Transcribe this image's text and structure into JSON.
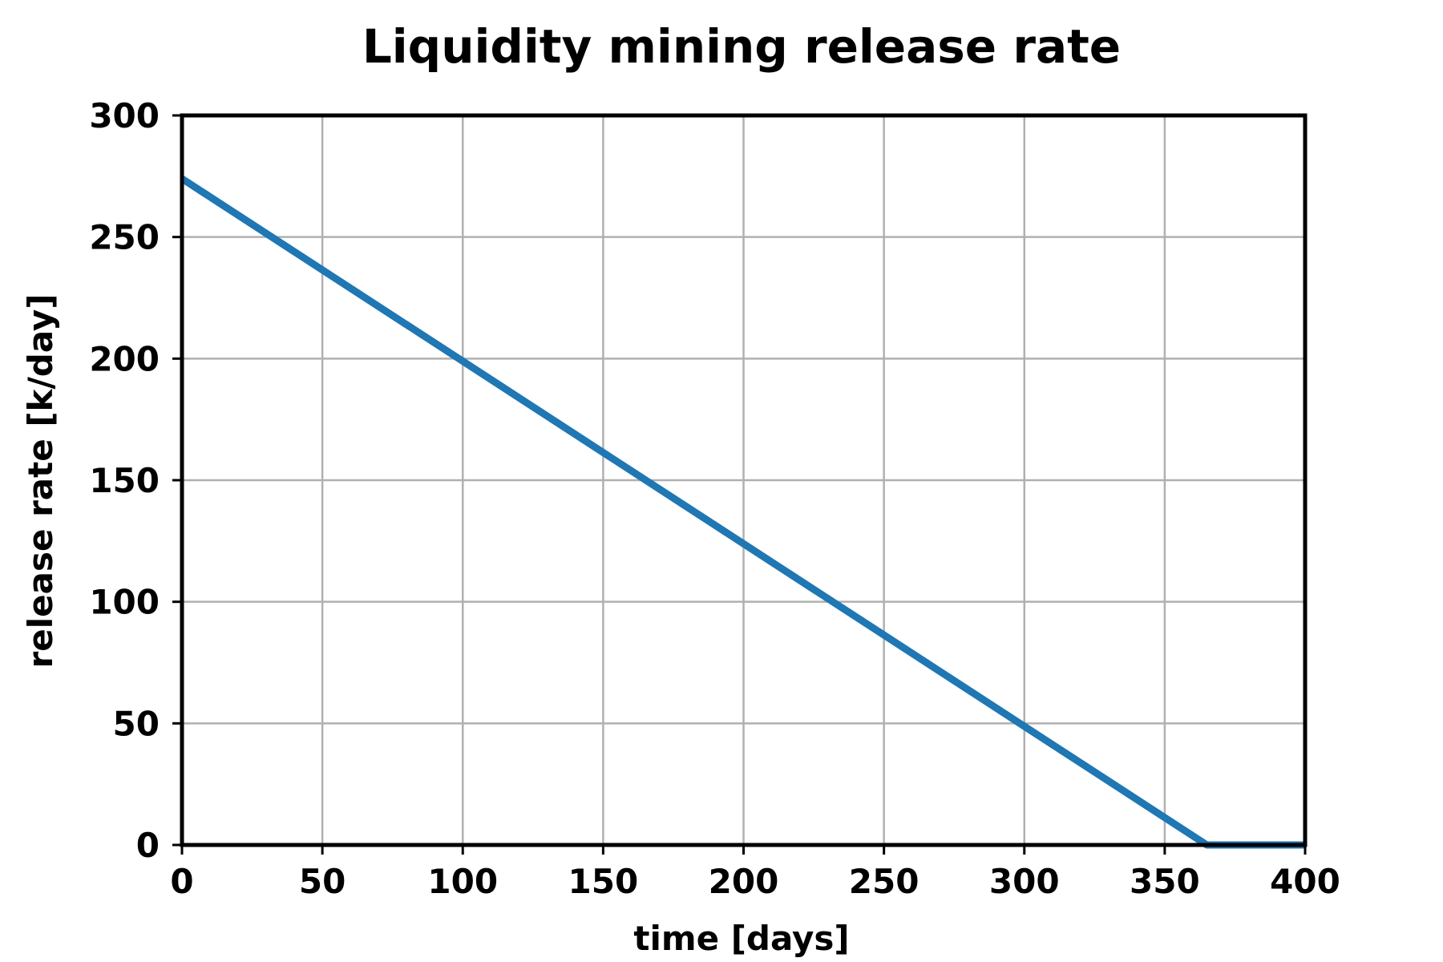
{
  "chart_data": {
    "type": "line",
    "title": "Liquidity mining release rate",
    "xlabel": "time [days]",
    "ylabel": "release rate [k/day]",
    "xlim": [
      0,
      400
    ],
    "ylim": [
      0,
      300
    ],
    "xticks": [
      0,
      50,
      100,
      150,
      200,
      250,
      300,
      350,
      400
    ],
    "yticks": [
      0,
      50,
      100,
      150,
      200,
      250,
      300
    ],
    "grid": true,
    "colors": {
      "line": "#1f77b4",
      "grid": "#b0b0b0",
      "axes": "#000000"
    },
    "series": [
      {
        "x": [
          0,
          365,
          400
        ],
        "y": [
          274,
          0,
          0
        ]
      }
    ]
  }
}
